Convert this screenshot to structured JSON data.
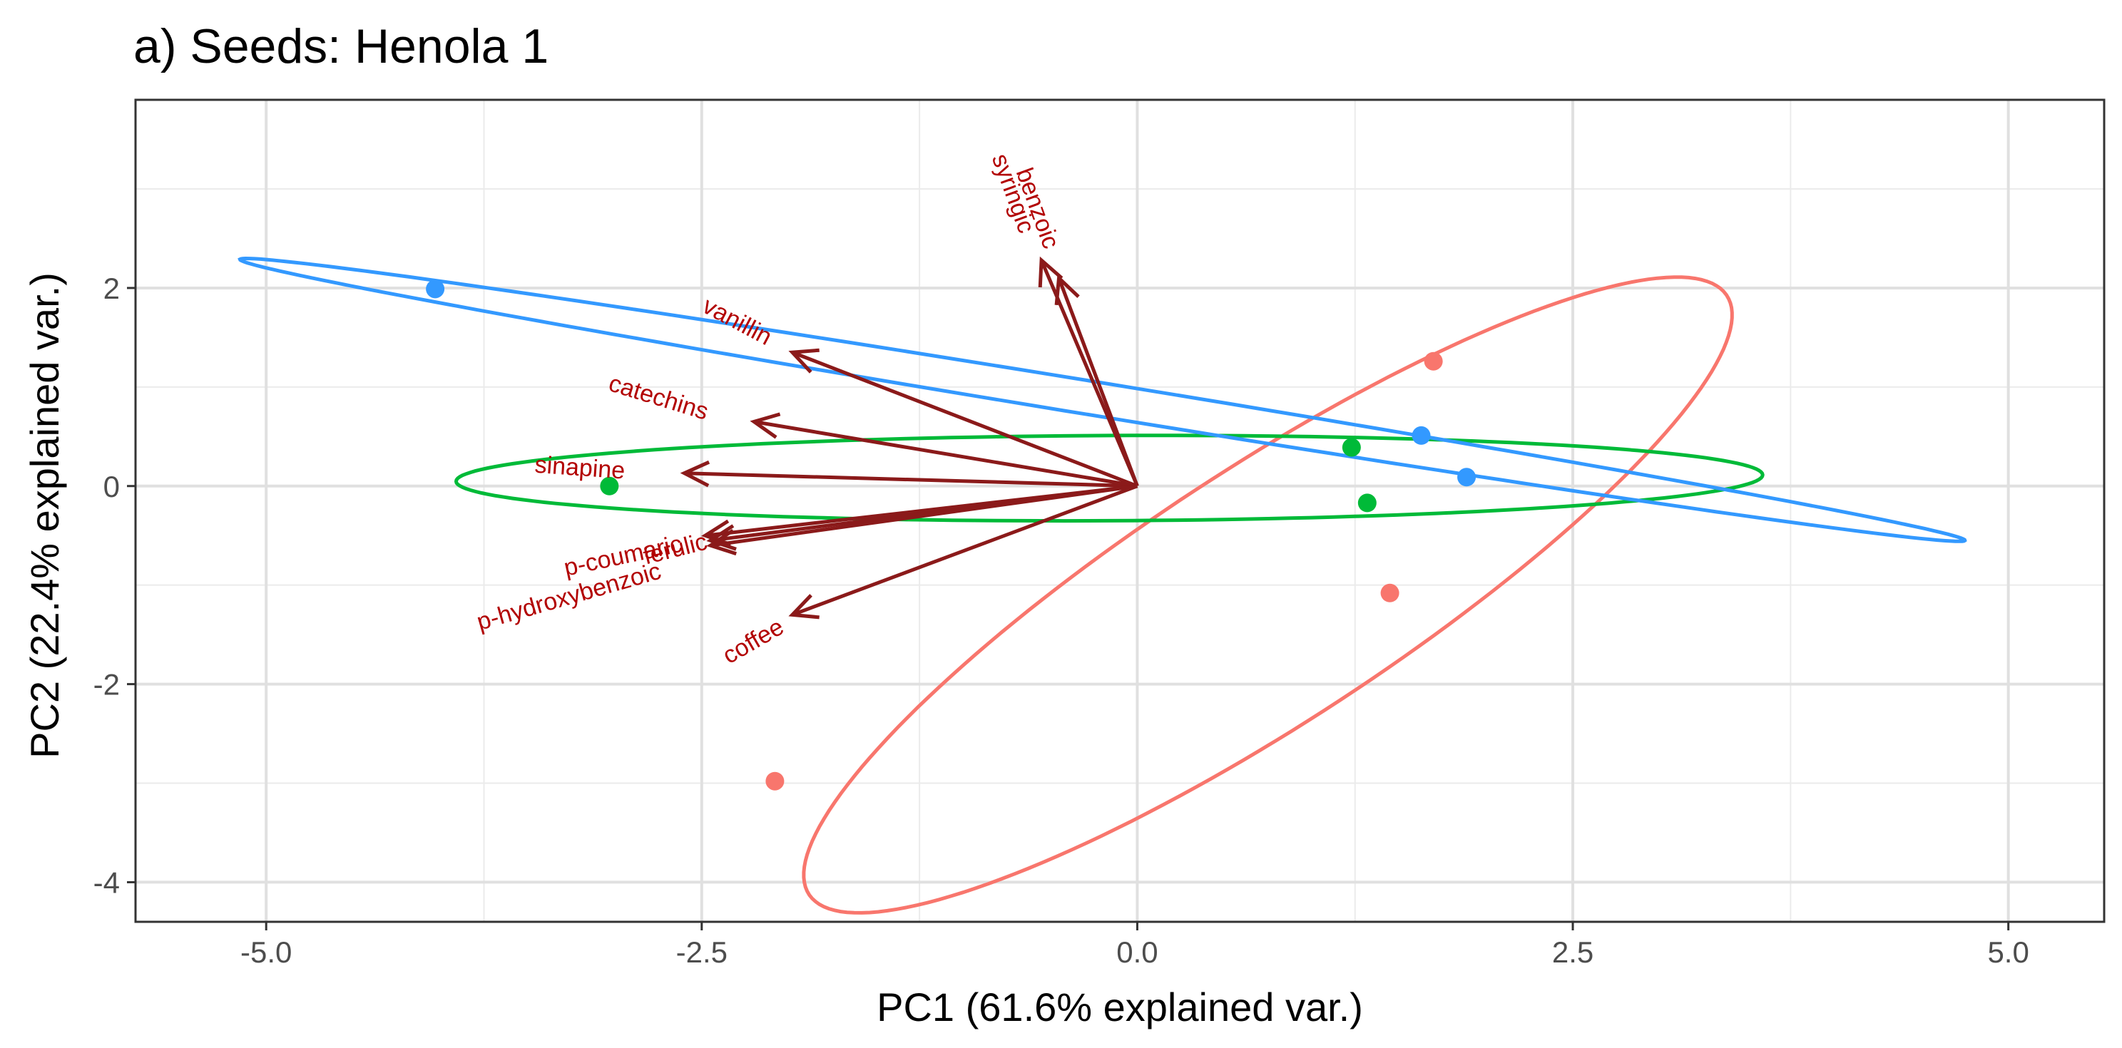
{
  "chart_data": {
    "type": "scatter",
    "title": "a) Seeds: Henola 1",
    "xlabel": "PC1 (61.6% explained var.)",
    "ylabel": "PC2 (22.4% explained var.)",
    "xlim": [
      -5.75,
      5.55
    ],
    "ylim": [
      -4.4,
      3.9
    ],
    "x_ticks": [
      -5.0,
      -2.5,
      0.0,
      2.5,
      5.0
    ],
    "x_tick_labels": [
      "-5.0",
      "-2.5",
      "0.0",
      "2.5",
      "5.0"
    ],
    "y_ticks": [
      -4,
      -2,
      0,
      2
    ],
    "y_tick_labels": [
      "-4",
      "-2",
      "0",
      "2"
    ],
    "x_minor": [
      -3.75,
      -1.25,
      1.25,
      3.75
    ],
    "y_minor": [
      -3,
      -1,
      1,
      3
    ],
    "grid": true,
    "arrow_color": "#8B1A1A",
    "label_color": "#B20000",
    "series": [
      {
        "name": "group-red",
        "color": "#F8766D",
        "points": [
          [
            1.7,
            1.26
          ],
          [
            1.45,
            -1.08
          ],
          [
            -2.08,
            -2.98
          ]
        ],
        "ellipse": {
          "cx": 0.75,
          "cy": -1.1,
          "a": 4.05,
          "b": 1.0,
          "angle_deg": 51
        }
      },
      {
        "name": "group-green",
        "color": "#00BA38",
        "points": [
          [
            -3.03,
            0.0
          ],
          [
            1.23,
            0.39
          ],
          [
            1.32,
            -0.17
          ]
        ],
        "ellipse": {
          "cx": -0.16,
          "cy": 0.08,
          "a": 3.75,
          "b": 0.43,
          "angle_deg": 0.5
        }
      },
      {
        "name": "group-blue",
        "color": "#3399FF",
        "points": [
          [
            -4.03,
            1.99
          ],
          [
            1.63,
            0.51
          ],
          [
            1.89,
            0.09
          ]
        ],
        "ellipse": {
          "cx": -0.2,
          "cy": 0.87,
          "a": 5.15,
          "b": 0.165,
          "angle_deg": -16
        }
      }
    ],
    "loadings": [
      {
        "name": "syringic",
        "x": -0.55,
        "y": 2.28,
        "lx": -0.72,
        "ly": 2.95,
        "rot": 70
      },
      {
        "name": "benzoic",
        "x": -0.45,
        "y": 2.1,
        "lx": -0.58,
        "ly": 2.8,
        "rot": 70
      },
      {
        "name": "vanillin",
        "x": -1.98,
        "y": 1.35,
        "lx": -2.3,
        "ly": 1.65,
        "rot": 28
      },
      {
        "name": "catechins",
        "x": -2.2,
        "y": 0.65,
        "lx": -2.75,
        "ly": 0.88,
        "rot": 17
      },
      {
        "name": "sinapine",
        "x": -2.6,
        "y": 0.13,
        "lx": -3.2,
        "ly": 0.17,
        "rot": 4
      },
      {
        "name": "p-coumaric",
        "x": -2.48,
        "y": -0.5,
        "lx": -2.95,
        "ly": -0.72,
        "rot": -12
      },
      {
        "name": "ferulic",
        "x": -2.45,
        "y": -0.6,
        "lx": -2.65,
        "ly": -0.65,
        "rot": -14
      },
      {
        "name": "p-hydroxybenzoic",
        "x": -2.45,
        "y": -0.55,
        "lx": -3.26,
        "ly": -1.13,
        "rot": -16
      },
      {
        "name": "coffee",
        "x": -1.98,
        "y": -1.3,
        "lx": -2.2,
        "ly": -1.58,
        "rot": -30
      }
    ]
  }
}
